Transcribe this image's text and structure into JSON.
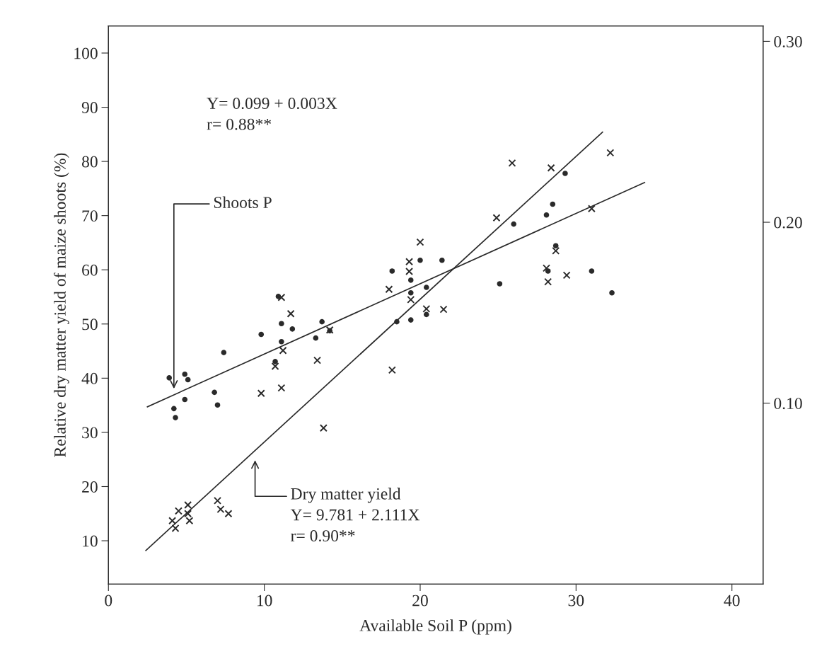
{
  "chart_data": {
    "type": "scatter",
    "xlabel": "Available Soil P (ppm)",
    "ylabel": "Relative dry matter yield of maize shoots (%)",
    "xlim": [
      0,
      42
    ],
    "xticks": [
      0,
      10,
      20,
      30,
      40
    ],
    "ylim": [
      2,
      105
    ],
    "yticks": [
      10,
      20,
      30,
      40,
      50,
      60,
      70,
      80,
      90,
      100
    ],
    "y2lim": [
      0,
      0.3085
    ],
    "y2ticks": [
      {
        "value": 0.1,
        "label": "0.10"
      },
      {
        "value": 0.2,
        "label": "0.20"
      },
      {
        "value": 0.3,
        "label": "0.30"
      }
    ],
    "grid": false,
    "series": [
      {
        "axis": "y2",
        "marker": "circle",
        "color": "#2a2a2a",
        "x": [
          3.9,
          4.9,
          5.1,
          4.9,
          4.2,
          4.3,
          6.8,
          7.0,
          7.4,
          9.8,
          11.1,
          11.8,
          11.1,
          10.7,
          10.9,
          13.7,
          13.3,
          14.2,
          18.2,
          19.4,
          19.4,
          18.5,
          19.4,
          20.0,
          21.4,
          20.4,
          20.4,
          29.3,
          28.5,
          28.1,
          26.0,
          28.7,
          28.2,
          31.0,
          32.3,
          25.1
        ],
        "values": [
          0.114,
          0.116,
          0.113,
          0.102,
          0.097,
          0.092,
          0.106,
          0.099,
          0.128,
          0.138,
          0.144,
          0.141,
          0.134,
          0.123,
          0.159,
          0.145,
          0.136,
          0.14,
          0.173,
          0.168,
          0.161,
          0.145,
          0.146,
          0.179,
          0.179,
          0.164,
          0.149,
          0.227,
          0.21,
          0.204,
          0.199,
          0.187,
          0.173,
          0.173,
          0.161,
          0.166
        ]
      },
      {
        "axis": "y",
        "marker": "cross",
        "color": "#2a2a2a",
        "x": [
          11.1,
          11.7,
          11.2,
          10.7,
          9.8,
          11.1,
          13.4,
          14.2,
          13.8,
          18.2,
          18.0,
          19.3,
          19.3,
          19.4,
          20.0,
          4.1,
          4.3,
          4.5,
          5.1,
          5.1,
          5.2,
          7.0,
          7.2,
          7.7,
          25.9,
          28.4,
          32.2,
          24.9,
          31.0,
          28.7,
          28.1,
          28.2,
          29.4,
          20.4,
          21.5
        ],
        "values": [
          54.9,
          51.9,
          45.1,
          42.2,
          37.2,
          38.2,
          43.3,
          48.9,
          30.8,
          41.5,
          56.4,
          61.5,
          59.7,
          54.5,
          65.1,
          13.7,
          12.3,
          15.5,
          16.6,
          15.0,
          13.7,
          17.4,
          15.8,
          15.0,
          79.7,
          78.8,
          81.6,
          69.6,
          71.3,
          63.5,
          60.3,
          57.8,
          59.0,
          52.8,
          52.7
        ]
      },
      {
        "type": "line",
        "axis": "y2",
        "marker": "none",
        "color": "#2a2a2a",
        "x": [
          2.5,
          34.4
        ],
        "values": [
          0.098,
          0.222
        ]
      },
      {
        "type": "line",
        "axis": "y",
        "marker": "none",
        "color": "#2a2a2a",
        "x": [
          2.4,
          31.7
        ],
        "values": [
          8.2,
          85.4
        ]
      }
    ],
    "annotations": [
      "Shoots P",
      "Dry matter yield\nY= 9.781 + 2.111X\nr= 0.90**",
      "Y= 0.099 + 0.003X\nr= 0.88**"
    ]
  }
}
